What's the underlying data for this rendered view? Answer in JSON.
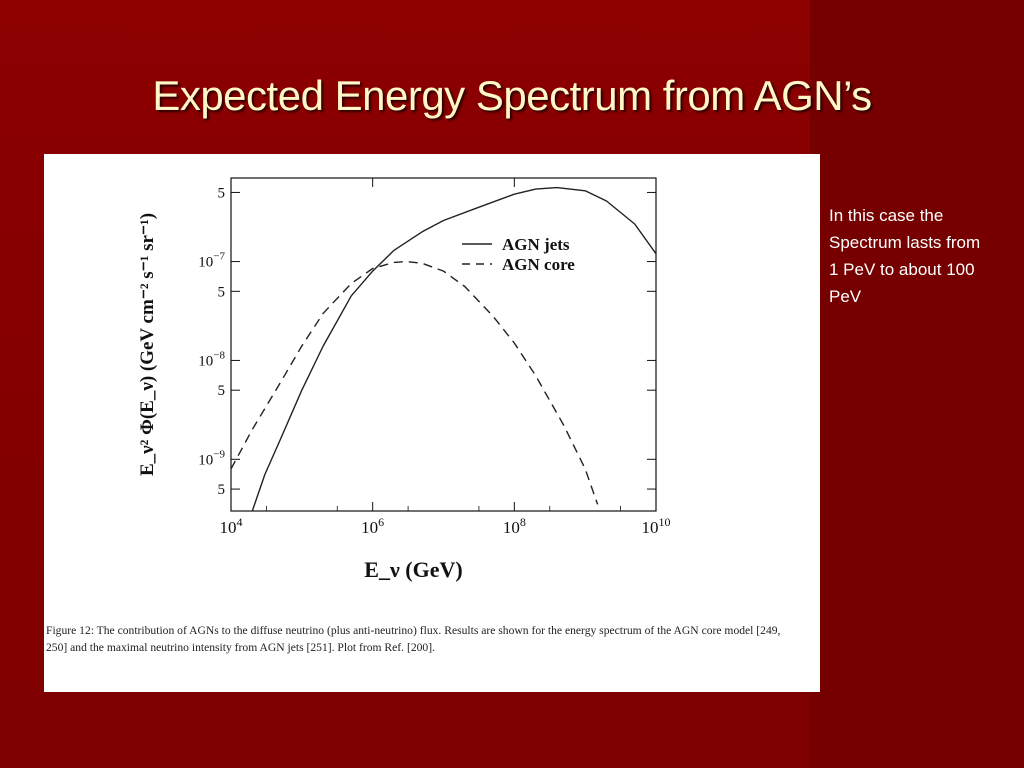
{
  "slide": {
    "title": "Expected Energy Spectrum from AGN’s",
    "side_note": "In this case the\nSpectrum lasts from\n1 PeV to about 100\nPeV",
    "colors": {
      "background": "#7a0000",
      "title": "#fff7c8",
      "text": "#ffffff"
    }
  },
  "figure": {
    "caption": "Figure 12: The contribution of AGNs to the diffuse neutrino (plus anti-neutrino) flux. Results are shown for the energy spectrum of the AGN core model [249, 250] and the maximal neutrino intensity from AGN jets [251]. Plot from Ref. [200]."
  },
  "chart_data": {
    "type": "line",
    "xlabel": "E_ν (GeV)",
    "ylabel": "E_ν² Φ(E_ν) (GeV cm⁻² s⁻¹ sr⁻¹)",
    "xscale": "log",
    "yscale": "log",
    "xlim": [
      10000,
      10000000000
    ],
    "ylim": [
      3e-10,
      7e-07
    ],
    "x_ticks": [
      {
        "value": 10000,
        "base": "10",
        "exp": "4"
      },
      {
        "value": 1000000,
        "base": "10",
        "exp": "6"
      },
      {
        "value": 100000000,
        "base": "10",
        "exp": "8"
      },
      {
        "value": 10000000000,
        "base": "10",
        "exp": "10"
      }
    ],
    "y_ticks": [
      {
        "value": 5e-10,
        "base": "5",
        "exp": ""
      },
      {
        "value": 1e-09,
        "base": "10",
        "exp": "−9"
      },
      {
        "value": 5e-09,
        "base": "5",
        "exp": ""
      },
      {
        "value": 1e-08,
        "base": "10",
        "exp": "−8"
      },
      {
        "value": 5e-08,
        "base": "5",
        "exp": ""
      },
      {
        "value": 1e-07,
        "base": "10",
        "exp": "−7"
      },
      {
        "value": 5e-07,
        "base": "5",
        "exp": ""
      }
    ],
    "legend": "top-right",
    "series": [
      {
        "name": "AGN jets",
        "style": "solid",
        "x": [
          20000,
          30000,
          50000,
          100000,
          200000,
          500000,
          1000000,
          2000000,
          5000000,
          10000000,
          30000000,
          100000000,
          200000000,
          400000000,
          1000000000,
          2000000000,
          5000000000,
          10000000000
        ],
        "y": [
          3e-10,
          7e-10,
          1.6e-09,
          5e-09,
          1.4e-08,
          4.5e-08,
          8e-08,
          1.3e-07,
          2e-07,
          2.6e-07,
          3.5e-07,
          4.8e-07,
          5.4e-07,
          5.6e-07,
          5.2e-07,
          4.1e-07,
          2.4e-07,
          1.2e-07
        ]
      },
      {
        "name": "AGN core",
        "style": "dashed",
        "x": [
          10000,
          20000,
          50000,
          100000,
          200000,
          500000,
          1000000,
          2000000,
          3000000,
          5000000,
          10000000,
          20000000,
          50000000,
          100000000,
          200000000,
          500000000,
          1000000000,
          1500000000
        ],
        "y": [
          8e-10,
          2e-09,
          6e-09,
          1.4e-08,
          3e-08,
          6e-08,
          8.5e-08,
          9.8e-08,
          1e-07,
          9.6e-08,
          8e-08,
          5.6e-08,
          2.8e-08,
          1.5e-08,
          7e-09,
          2.2e-09,
          8e-10,
          3.5e-10
        ]
      }
    ]
  }
}
